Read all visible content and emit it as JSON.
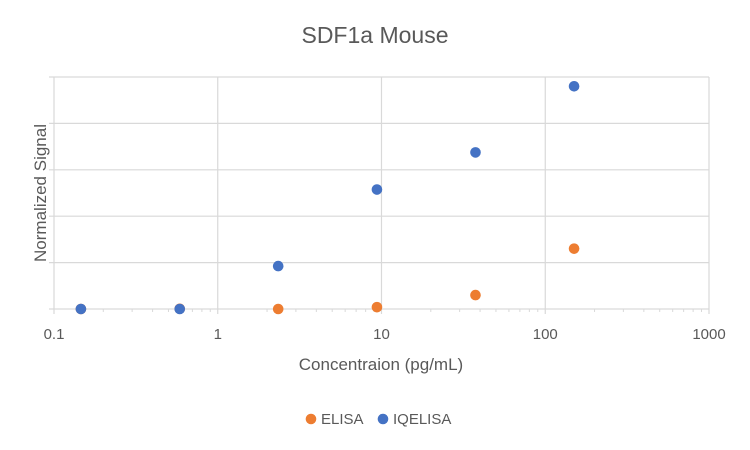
{
  "chart_data": {
    "type": "scatter",
    "title": "SDF1a Mouse",
    "xlabel": "Concentraion (pg/mL)",
    "ylabel": "Normalized Signal",
    "x_scale": "log",
    "xlim": [
      0.1,
      1000
    ],
    "ylim": [
      0,
      1
    ],
    "x_ticks": [
      0.1,
      1,
      10,
      100,
      1000
    ],
    "x_tick_labels": [
      "0.1",
      "1",
      "10",
      "100",
      "1000"
    ],
    "y_gridlines": 5,
    "y_tick_labels_shown": false,
    "grid": true,
    "legend_position": "bottom",
    "series": [
      {
        "name": "ELISA",
        "color": "#ED7D31",
        "x": [
          0.146,
          0.586,
          2.34,
          9.38,
          37.5,
          150
        ],
        "y": [
          0.0,
          0.001,
          0.0,
          0.008,
          0.06,
          0.26
        ]
      },
      {
        "name": "IQELISA",
        "color": "#4472C4",
        "x": [
          0.146,
          0.586,
          2.34,
          9.38,
          37.5,
          150
        ],
        "y": [
          0.0,
          0.0,
          0.185,
          0.515,
          0.675,
          0.96
        ]
      }
    ]
  }
}
